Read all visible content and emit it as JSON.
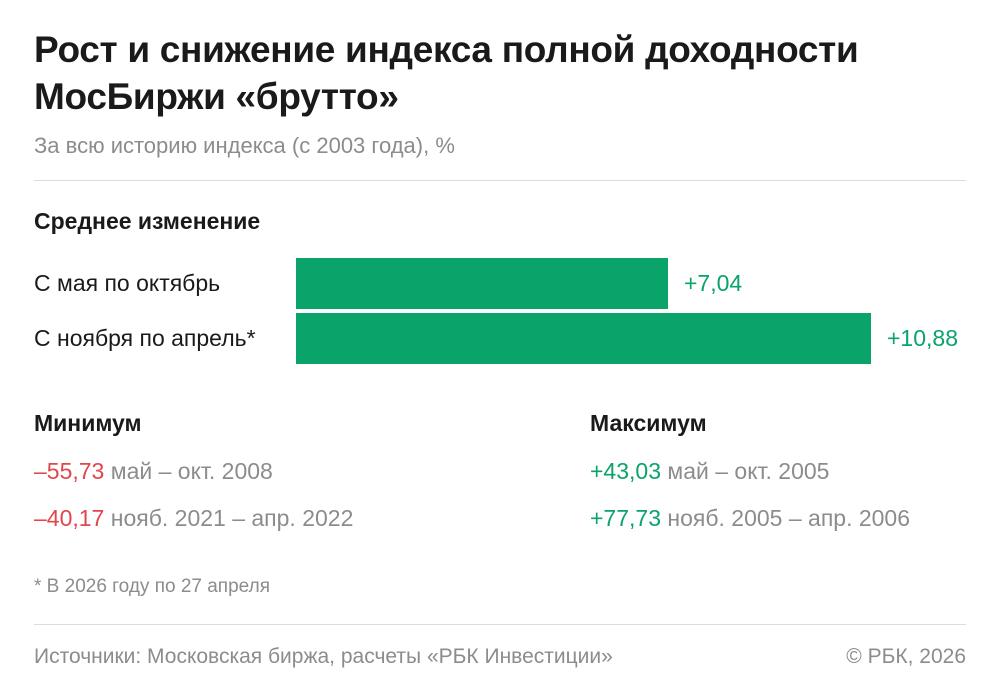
{
  "header": {
    "title": "Рост и снижение индекса полной доходности МосБиржи «брутто»",
    "subtitle": "За всю историю индекса (с 2003 года), %"
  },
  "chart_data": {
    "type": "bar",
    "orientation": "horizontal",
    "title": "Среднее изменение",
    "categories": [
      "С мая по октябрь",
      "С ноября по апрель*"
    ],
    "values": [
      7.04,
      10.88
    ],
    "value_labels": [
      "+7,04",
      "+10,88"
    ],
    "color": "#0aa36a",
    "xlim": [
      0,
      10.88
    ]
  },
  "stats": {
    "min_heading": "Минимум",
    "max_heading": "Максимум",
    "min": [
      {
        "value": "–55,73",
        "period": "май – окт. 2008"
      },
      {
        "value": "–40,17",
        "period": "нояб. 2021 – апр. 2022"
      }
    ],
    "max": [
      {
        "value": "+43,03",
        "period": "май – окт. 2005"
      },
      {
        "value": "+77,73",
        "period": "нояб. 2005 – апр. 2006"
      }
    ],
    "negative_color": "#e2454b",
    "positive_color": "#0aa36a"
  },
  "footnote": "* В 2026 году по 27 апреля",
  "footer": {
    "source": "Источники: Московская биржа, расчеты «РБК Инвестиции»",
    "copyright": "© РБК, 2026"
  }
}
